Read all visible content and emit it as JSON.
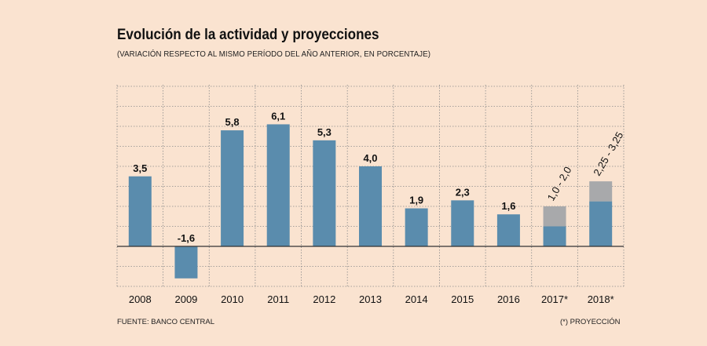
{
  "title": "Evolución de la actividad y proyecciones",
  "subtitle": "(VARIACIÓN RESPECTO AL MISMO PERÍODO DEL AÑO ANTERIOR, EN PORCENTAJE)",
  "source": "FUENTE: BANCO CENTRAL",
  "note": "(*) PROYECCIÓN",
  "colors": {
    "bar": "#5a8cad",
    "projection_range": "#a8a9ab",
    "background": "#fae3d0",
    "grid": "#8a8a8a"
  },
  "chart_data": {
    "type": "bar",
    "title": "Evolución de la actividad y proyecciones",
    "xlabel": "",
    "ylabel": "",
    "ylim": [
      -1.8,
      7.4
    ],
    "grid": true,
    "categories": [
      "2008",
      "2009",
      "2010",
      "2011",
      "2012",
      "2013",
      "2014",
      "2015",
      "2016",
      "2017*",
      "2018*"
    ],
    "values": [
      3.5,
      -1.6,
      5.8,
      6.1,
      5.3,
      4.0,
      1.9,
      2.3,
      1.6,
      null,
      null
    ],
    "labels": [
      "3,5",
      "-1,6",
      "5,8",
      "6,1",
      "5,3",
      "4,0",
      "1,9",
      "2,3",
      "1,6",
      "1,0 - 2,0",
      "2,25 - 3,25"
    ],
    "ranges": [
      null,
      null,
      null,
      null,
      null,
      null,
      null,
      null,
      null,
      [
        1.0,
        2.0
      ],
      [
        2.25,
        3.25
      ]
    ]
  }
}
